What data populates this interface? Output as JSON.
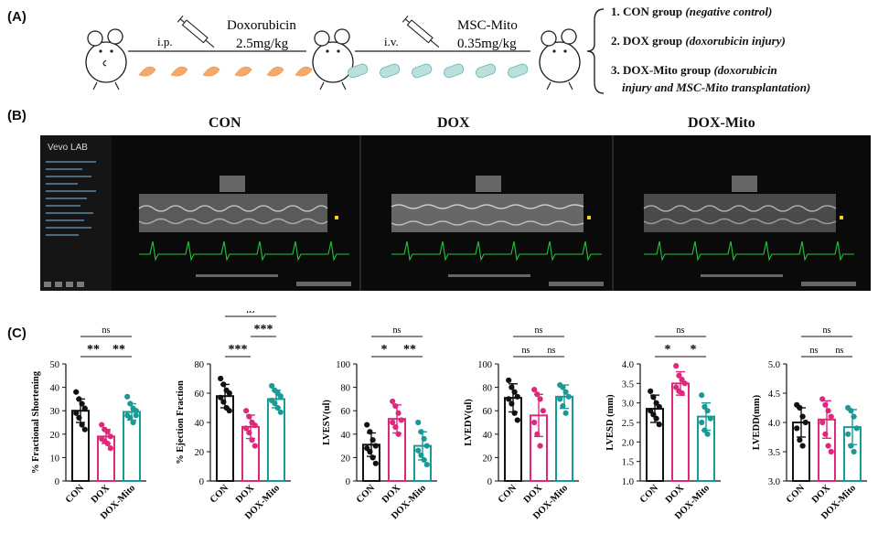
{
  "panel_labels": {
    "a": "(A)",
    "b": "(B)",
    "c": "(C)"
  },
  "schematic": {
    "drug1": "Doxorubicin",
    "dose1": "2.5mg/kg",
    "route1": "i.p.",
    "drug2": "MSC-Mito",
    "dose2": "0.35mg/kg",
    "route2": "i.v."
  },
  "groups": [
    {
      "label": "1. CON group ",
      "note": "(negative control)"
    },
    {
      "label": "2. DOX group ",
      "note": "(doxorubicin injury)"
    },
    {
      "label": "3. DOX-Mito group ",
      "note": "(doxorubicin",
      "note2": "injury and MSC-Mito transplantation)"
    }
  ],
  "echo": {
    "titles": [
      "CON",
      "DOX",
      "DOX-Mito"
    ],
    "logo": "Vevo LAB"
  },
  "colors": {
    "CON": "#111111",
    "DOX": "#e0287a",
    "DOX-Mito": "#1a9a96"
  },
  "chart_data": [
    {
      "type": "bar",
      "ylabel": "% Fractional Shortening",
      "categories": [
        "CON",
        "DOX",
        "DOX-Mito"
      ],
      "values": [
        30,
        19,
        29.5
      ],
      "errors": [
        5,
        3,
        3.5
      ],
      "ylim": [
        0,
        50
      ],
      "yticks": [
        0,
        10,
        20,
        30,
        40,
        50
      ],
      "points": [
        [
          38,
          35,
          33,
          31,
          29,
          27,
          24,
          22
        ],
        [
          24,
          22,
          21,
          19,
          18,
          17,
          16,
          14
        ],
        [
          36,
          33,
          31,
          30,
          28,
          27,
          25,
          28
        ]
      ],
      "sig": [
        {
          "from": 0,
          "to": 2,
          "label": "ns",
          "level": 2
        },
        {
          "from": 0,
          "to": 1,
          "label": "**",
          "level": 1
        },
        {
          "from": 1,
          "to": 2,
          "label": "**",
          "level": 1
        }
      ]
    },
    {
      "type": "bar",
      "ylabel": "% Ejection Fraction",
      "categories": [
        "CON",
        "DOX",
        "DOX-Mito"
      ],
      "values": [
        58,
        37,
        56
      ],
      "errors": [
        8,
        8,
        6
      ],
      "ylim": [
        0,
        80
      ],
      "yticks": [
        0,
        20,
        40,
        60,
        80
      ],
      "points": [
        [
          70,
          66,
          62,
          60,
          57,
          54,
          50,
          48
        ],
        [
          48,
          44,
          40,
          38,
          36,
          33,
          28,
          24
        ],
        [
          65,
          62,
          60,
          58,
          55,
          53,
          50,
          47
        ]
      ],
      "sig": [
        {
          "from": 0,
          "to": 2,
          "label": "ns",
          "level": 3
        },
        {
          "from": 1,
          "to": 2,
          "label": "***",
          "level": 2
        },
        {
          "from": 0,
          "to": 1,
          "label": "***",
          "level": 1
        }
      ]
    },
    {
      "type": "bar",
      "ylabel": "LVESV(ul)",
      "categories": [
        "CON",
        "DOX",
        "DOX-Mito"
      ],
      "values": [
        31,
        53,
        30
      ],
      "errors": [
        10,
        12,
        12
      ],
      "ylim": [
        0,
        100
      ],
      "yticks": [
        0,
        20,
        40,
        60,
        80,
        100
      ],
      "points": [
        [
          48,
          42,
          35,
          30,
          28,
          25,
          20,
          15
        ],
        [
          68,
          64,
          58,
          52,
          50,
          46,
          40
        ],
        [
          50,
          42,
          36,
          30,
          26,
          22,
          18,
          14
        ]
      ],
      "sig": [
        {
          "from": 0,
          "to": 2,
          "label": "ns",
          "level": 2
        },
        {
          "from": 0,
          "to": 1,
          "label": "*",
          "level": 1
        },
        {
          "from": 1,
          "to": 2,
          "label": "**",
          "level": 1
        }
      ]
    },
    {
      "type": "bar",
      "ylabel": "LVEDV(ul)",
      "categories": [
        "CON",
        "DOX",
        "DOX-Mito"
      ],
      "values": [
        71,
        56,
        72
      ],
      "errors": [
        12,
        18,
        10
      ],
      "ylim": [
        0,
        100
      ],
      "yticks": [
        0,
        20,
        40,
        60,
        80,
        100
      ],
      "points": [
        [
          86,
          80,
          76,
          72,
          70,
          66,
          58,
          52
        ],
        [
          78,
          74,
          70,
          60,
          50,
          40,
          30
        ],
        [
          82,
          80,
          76,
          72,
          70,
          64,
          58
        ]
      ],
      "sig": [
        {
          "from": 0,
          "to": 2,
          "label": "ns",
          "level": 2
        },
        {
          "from": 0,
          "to": 1,
          "label": "ns",
          "level": 1
        },
        {
          "from": 1,
          "to": 2,
          "label": "ns",
          "level": 1
        }
      ]
    },
    {
      "type": "bar",
      "ylabel": "LVESD  (mm)",
      "categories": [
        "CON",
        "DOX",
        "DOX-Mito"
      ],
      "values": [
        2.85,
        3.5,
        2.65
      ],
      "errors": [
        0.35,
        0.3,
        0.35
      ],
      "ylim": [
        1.0,
        4.0
      ],
      "yticks": [
        1.0,
        1.5,
        2.0,
        2.5,
        3.0,
        3.5,
        4.0
      ],
      "points": [
        [
          3.3,
          3.15,
          3.0,
          2.9,
          2.8,
          2.7,
          2.6,
          2.45
        ],
        [
          3.95,
          3.7,
          3.6,
          3.5,
          3.4,
          3.3,
          3.25
        ],
        [
          3.2,
          2.9,
          2.8,
          2.6,
          2.5,
          2.3,
          2.2
        ]
      ],
      "sig": [
        {
          "from": 0,
          "to": 2,
          "label": "ns",
          "level": 2
        },
        {
          "from": 0,
          "to": 1,
          "label": "*",
          "level": 1
        },
        {
          "from": 1,
          "to": 2,
          "label": "*",
          "level": 1
        }
      ]
    },
    {
      "type": "bar",
      "ylabel": "LVEDD(mm)",
      "categories": [
        "CON",
        "DOX",
        "DOX-Mito"
      ],
      "values": [
        4.0,
        4.05,
        3.92
      ],
      "errors": [
        0.25,
        0.32,
        0.3
      ],
      "ylim": [
        3.0,
        5.0
      ],
      "yticks": [
        3.0,
        3.5,
        4.0,
        4.5,
        5.0
      ],
      "points": [
        [
          4.3,
          4.25,
          4.1,
          4.0,
          3.9,
          3.7,
          3.6
        ],
        [
          4.4,
          4.3,
          4.2,
          4.1,
          4.0,
          3.8,
          3.6,
          3.5
        ],
        [
          4.25,
          4.2,
          4.1,
          3.9,
          3.8,
          3.6,
          3.5
        ]
      ],
      "sig": [
        {
          "from": 0,
          "to": 2,
          "label": "ns",
          "level": 2
        },
        {
          "from": 0,
          "to": 1,
          "label": "ns",
          "level": 1
        },
        {
          "from": 1,
          "to": 2,
          "label": "ns",
          "level": 1
        }
      ]
    }
  ]
}
